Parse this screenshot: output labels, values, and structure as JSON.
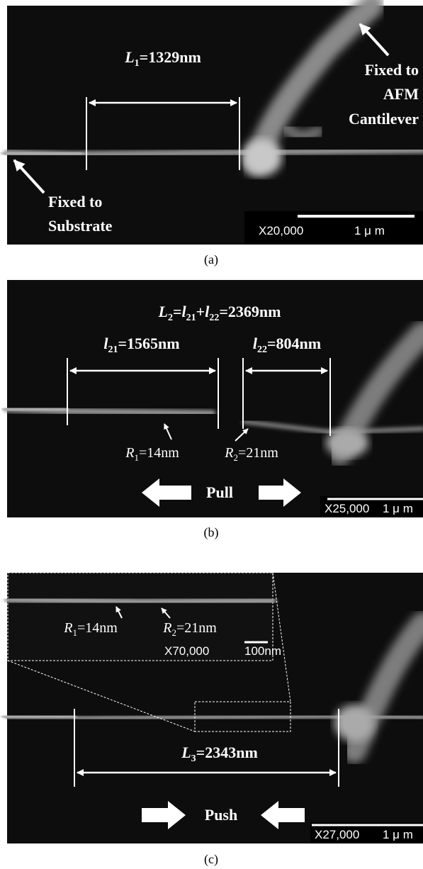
{
  "panels": [
    {
      "caption": "(a)",
      "measure": [
        {
          "text": "L"
        },
        {
          "text": "1",
          "sub": true
        },
        {
          "text": "=1329nm"
        }
      ],
      "notes": [
        {
          "lines": [
            "Fixed to",
            "AFM",
            "Cantilever"
          ]
        },
        {
          "lines": [
            "Fixed to",
            "Substrate"
          ]
        }
      ],
      "scale": {
        "magnification": "X20,000",
        "length": "1 μ m"
      }
    },
    {
      "caption": "(b)",
      "total": [
        {
          "text": "L"
        },
        {
          "text": "2",
          "sub": true
        },
        {
          "text": "="
        },
        {
          "text": "l"
        },
        {
          "text": "21",
          "sub": true
        },
        {
          "text": "+"
        },
        {
          "text": "l"
        },
        {
          "text": "22",
          "sub": true
        },
        {
          "text": "=2369nm"
        }
      ],
      "measures": [
        [
          {
            "text": "l"
          },
          {
            "text": "21",
            "sub": true
          },
          {
            "text": "=1565nm"
          }
        ],
        [
          {
            "text": "l"
          },
          {
            "text": "22",
            "sub": true
          },
          {
            "text": "=804nm"
          }
        ]
      ],
      "radii": [
        [
          {
            "text": "R"
          },
          {
            "text": "1",
            "sub": true
          },
          {
            "text": "=14nm"
          }
        ],
        [
          {
            "text": "R"
          },
          {
            "text": "2",
            "sub": true
          },
          {
            "text": "=21nm"
          }
        ]
      ],
      "action": "Pull",
      "scale": {
        "magnification": "X25,000",
        "length": "1 μ m"
      }
    },
    {
      "caption": "(c)",
      "measure": [
        {
          "text": "L"
        },
        {
          "text": "3",
          "sub": true
        },
        {
          "text": "=2343nm"
        }
      ],
      "radii": [
        [
          {
            "text": "R"
          },
          {
            "text": "1",
            "sub": true
          },
          {
            "text": "=14nm"
          }
        ],
        [
          {
            "text": "R"
          },
          {
            "text": "2",
            "sub": true
          },
          {
            "text": "=21nm"
          }
        ]
      ],
      "inset_scale": {
        "magnification": "X70,000",
        "length": "100nm"
      },
      "action": "Push",
      "scale": {
        "magnification": "X27,000",
        "length": "1 μ m"
      }
    }
  ]
}
